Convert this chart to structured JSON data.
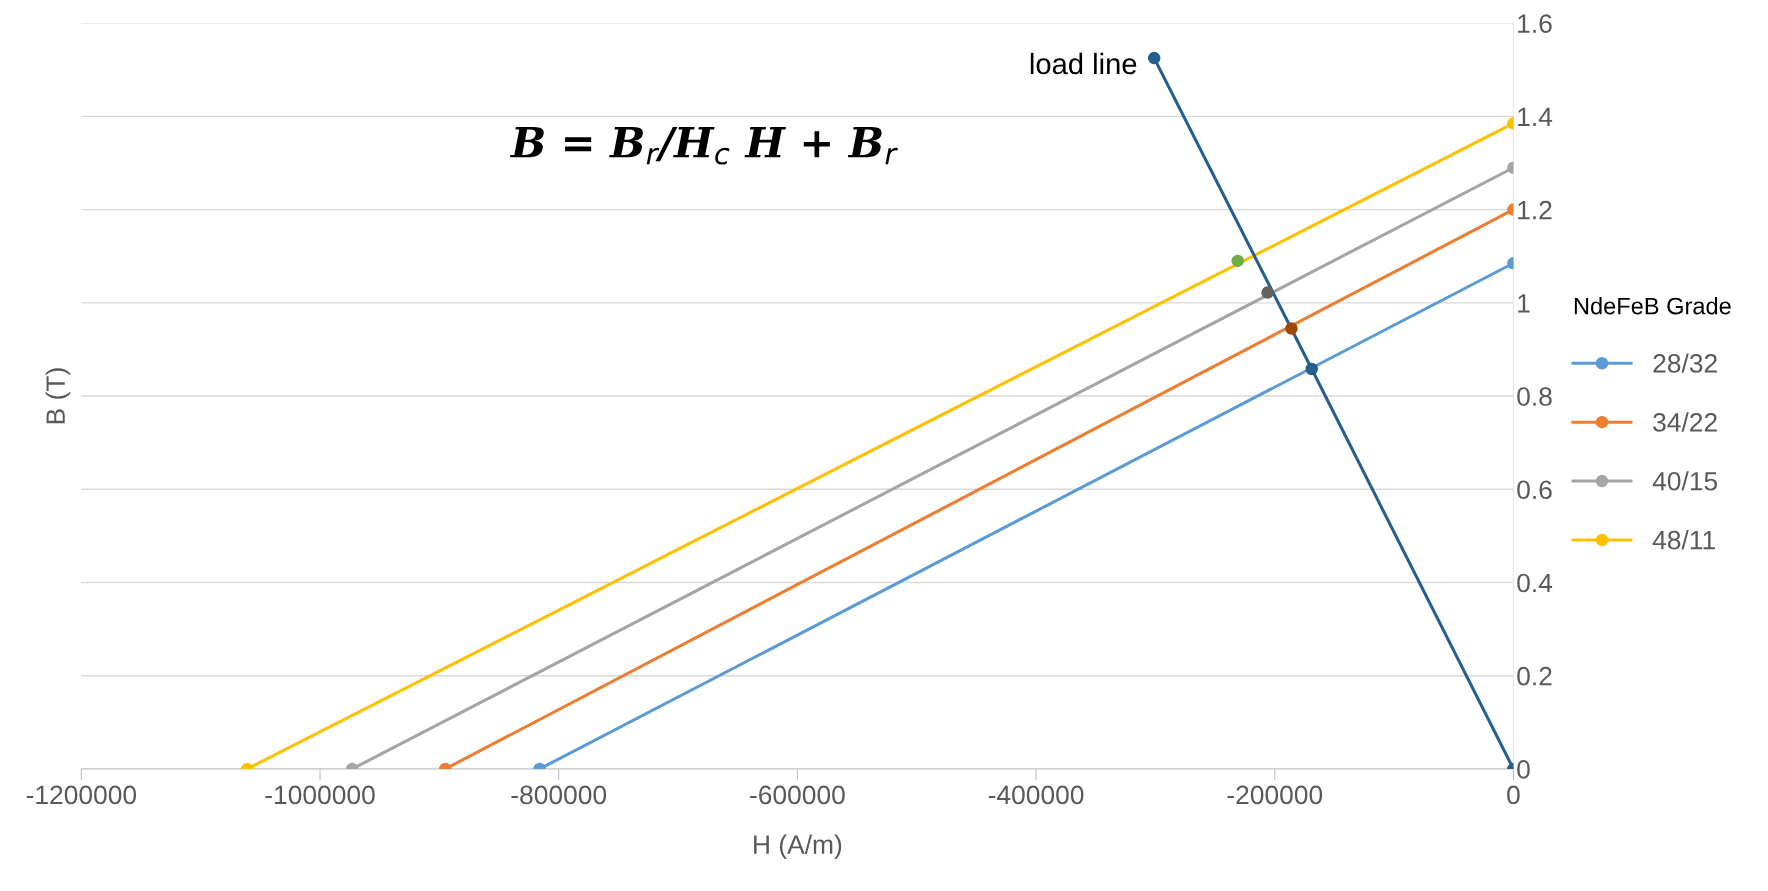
{
  "chart_data": {
    "type": "line",
    "xlabel": "H (A/m)",
    "ylabel": "B (T)",
    "legend_title": "NdeFeB Grade",
    "xlim": [
      -1200000,
      0
    ],
    "xticks": [
      -1200000,
      -1000000,
      -800000,
      -600000,
      -400000,
      -200000,
      0
    ],
    "ylim": [
      0,
      1.6
    ],
    "yticks": [
      0,
      0.2,
      0.4,
      0.6,
      0.8,
      1,
      1.2,
      1.4,
      1.6
    ],
    "grid": "y",
    "legend": "right",
    "marker": "circle",
    "line_style": "solid",
    "series": [
      {
        "name": "28/32",
        "color": "#5b9bd5",
        "x": [
          -816000,
          0
        ],
        "values": [
          0,
          1.085
        ]
      },
      {
        "name": "34/22",
        "color": "#ed7d31",
        "x": [
          -895000,
          0
        ],
        "values": [
          0,
          1.2
        ]
      },
      {
        "name": "40/15",
        "color": "#a5a5a5",
        "x": [
          -973000,
          0
        ],
        "values": [
          0,
          1.29
        ]
      },
      {
        "name": "48/11",
        "color": "#ffc000",
        "x": [
          -1061000,
          0
        ],
        "values": [
          0,
          1.385
        ]
      },
      {
        "color": "#255e91",
        "x": [
          -301000,
          -169000,
          0
        ],
        "values": [
          1.525,
          0.858,
          0
        ]
      },
      {
        "type": "scatter",
        "color": "#9e480e",
        "x": [
          -186000
        ],
        "values": [
          0.945
        ]
      },
      {
        "type": "scatter",
        "color": "#636363",
        "x": [
          -206000
        ],
        "values": [
          1.022
        ]
      },
      {
        "type": "scatter",
        "color": "#70ad47",
        "x": [
          -231000
        ],
        "values": [
          1.09
        ]
      }
    ],
    "annotations": [
      "load line",
      "B = B$_{r}$/H$_{c}$ H + B$_{r}$"
    ]
  }
}
